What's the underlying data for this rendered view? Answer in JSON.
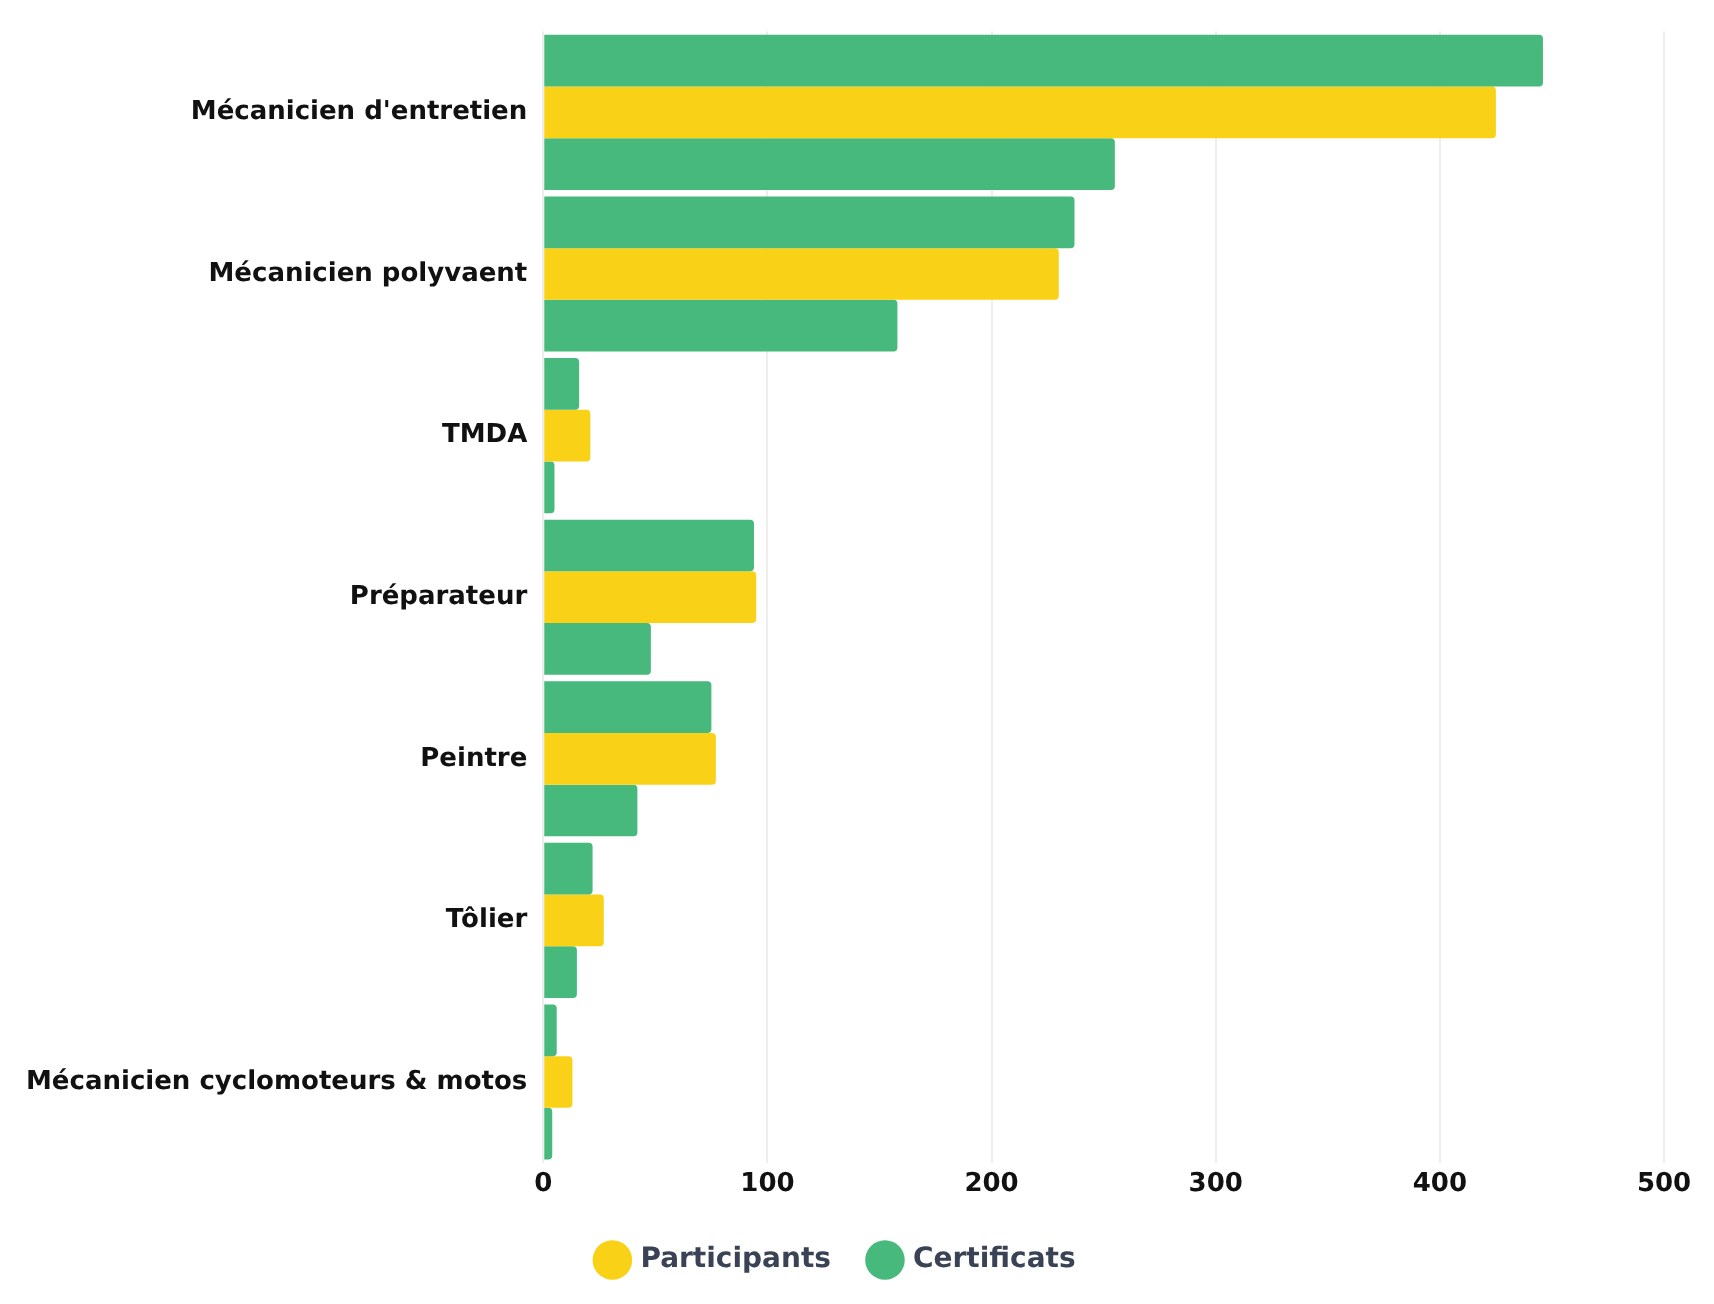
{
  "chart_data": {
    "type": "bar",
    "orientation": "horizontal",
    "categories": [
      "Mécanicien d'entretien",
      "Mécanicien polyvaent",
      "TMDA",
      "Préparateur",
      "Peintre",
      "Tôlier",
      "Mécanicien cyclomoteurs & motos"
    ],
    "series": [
      {
        "color": "#48b97c",
        "values": [
          446,
          237,
          16,
          94,
          75,
          22,
          6
        ]
      },
      {
        "name": "Participants",
        "color": "#f9d218",
        "values": [
          425,
          230,
          21,
          95,
          77,
          27,
          13
        ]
      },
      {
        "name": "Certificats",
        "color": "#48b97c",
        "values": [
          255,
          158,
          5,
          48,
          42,
          15,
          4
        ]
      }
    ],
    "xlim": [
      0,
      500
    ],
    "xticks": [
      0,
      100,
      200,
      300,
      400,
      500
    ],
    "grid": "x",
    "legend": "bottom"
  }
}
